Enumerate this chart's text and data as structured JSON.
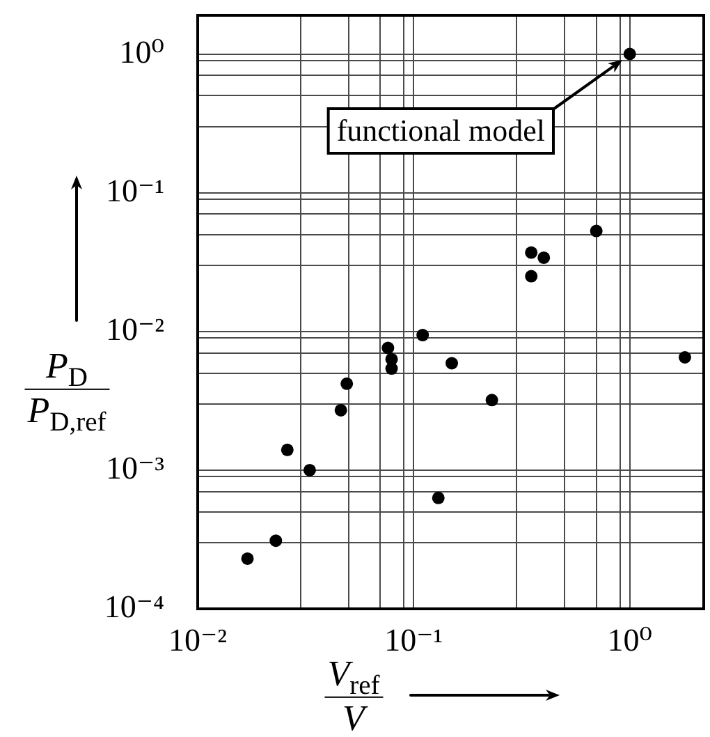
{
  "chart_data": {
    "type": "scatter",
    "xlabel": "V$_{ref}$\nV",
    "ylabel": "P$_{D}$\nP$_{D,ref}$",
    "x": [
      0.017,
      0.023,
      0.026,
      0.033,
      0.046,
      0.049,
      0.076,
      0.079,
      0.079,
      0.11,
      0.13,
      0.15,
      0.23,
      0.35,
      0.4,
      0.35,
      0.7,
      1.0,
      1.8
    ],
    "values": [
      0.00023,
      0.00031,
      0.0014,
      0.001,
      0.0027,
      0.0042,
      0.0076,
      0.0063,
      0.0054,
      0.0094,
      0.00063,
      0.0059,
      0.0032,
      0.037,
      0.034,
      0.025,
      0.053,
      1.0,
      0.0065
    ],
    "color": "#000000",
    "marker": "circle",
    "log": "xy",
    "grid": true,
    "xlim": [
      0.01,
      2.2
    ],
    "ylim": [
      0.0001,
      1.9
    ],
    "xticks": [
      {
        "value": 0.01,
        "label": "10⁻²"
      },
      {
        "value": 0.03,
        "label": null
      },
      {
        "value": 0.05,
        "label": null
      },
      {
        "value": 0.07,
        "label": null
      },
      {
        "value": 0.09,
        "label": null
      },
      {
        "value": 0.1,
        "label": "10⁻¹"
      },
      {
        "value": 0.3,
        "label": null
      },
      {
        "value": 0.5,
        "label": null
      },
      {
        "value": 0.7,
        "label": null
      },
      {
        "value": 0.9,
        "label": null
      },
      {
        "value": 1,
        "label": "10⁰"
      }
    ],
    "yticks": [
      {
        "value": 0.0001,
        "label": "10⁻⁴"
      },
      {
        "value": 0.0003,
        "label": null
      },
      {
        "value": 0.0005,
        "label": null
      },
      {
        "value": 0.0007,
        "label": null
      },
      {
        "value": 0.0009,
        "label": null
      },
      {
        "value": 0.001,
        "label": "10⁻³"
      },
      {
        "value": 0.003,
        "label": null
      },
      {
        "value": 0.005,
        "label": null
      },
      {
        "value": 0.007,
        "label": null
      },
      {
        "value": 0.009,
        "label": null
      },
      {
        "value": 0.01,
        "label": "10⁻²"
      },
      {
        "value": 0.03,
        "label": null
      },
      {
        "value": 0.05,
        "label": null
      },
      {
        "value": 0.07,
        "label": null
      },
      {
        "value": 0.09,
        "label": null
      },
      {
        "value": 0.1,
        "label": "10⁻¹"
      },
      {
        "value": 0.3,
        "label": null
      },
      {
        "value": 0.5,
        "label": null
      },
      {
        "value": 0.7,
        "label": null
      },
      {
        "value": 0.9,
        "label": null
      },
      {
        "value": 1,
        "label": "10⁰"
      }
    ],
    "annotations": [
      "functional model"
    ]
  }
}
